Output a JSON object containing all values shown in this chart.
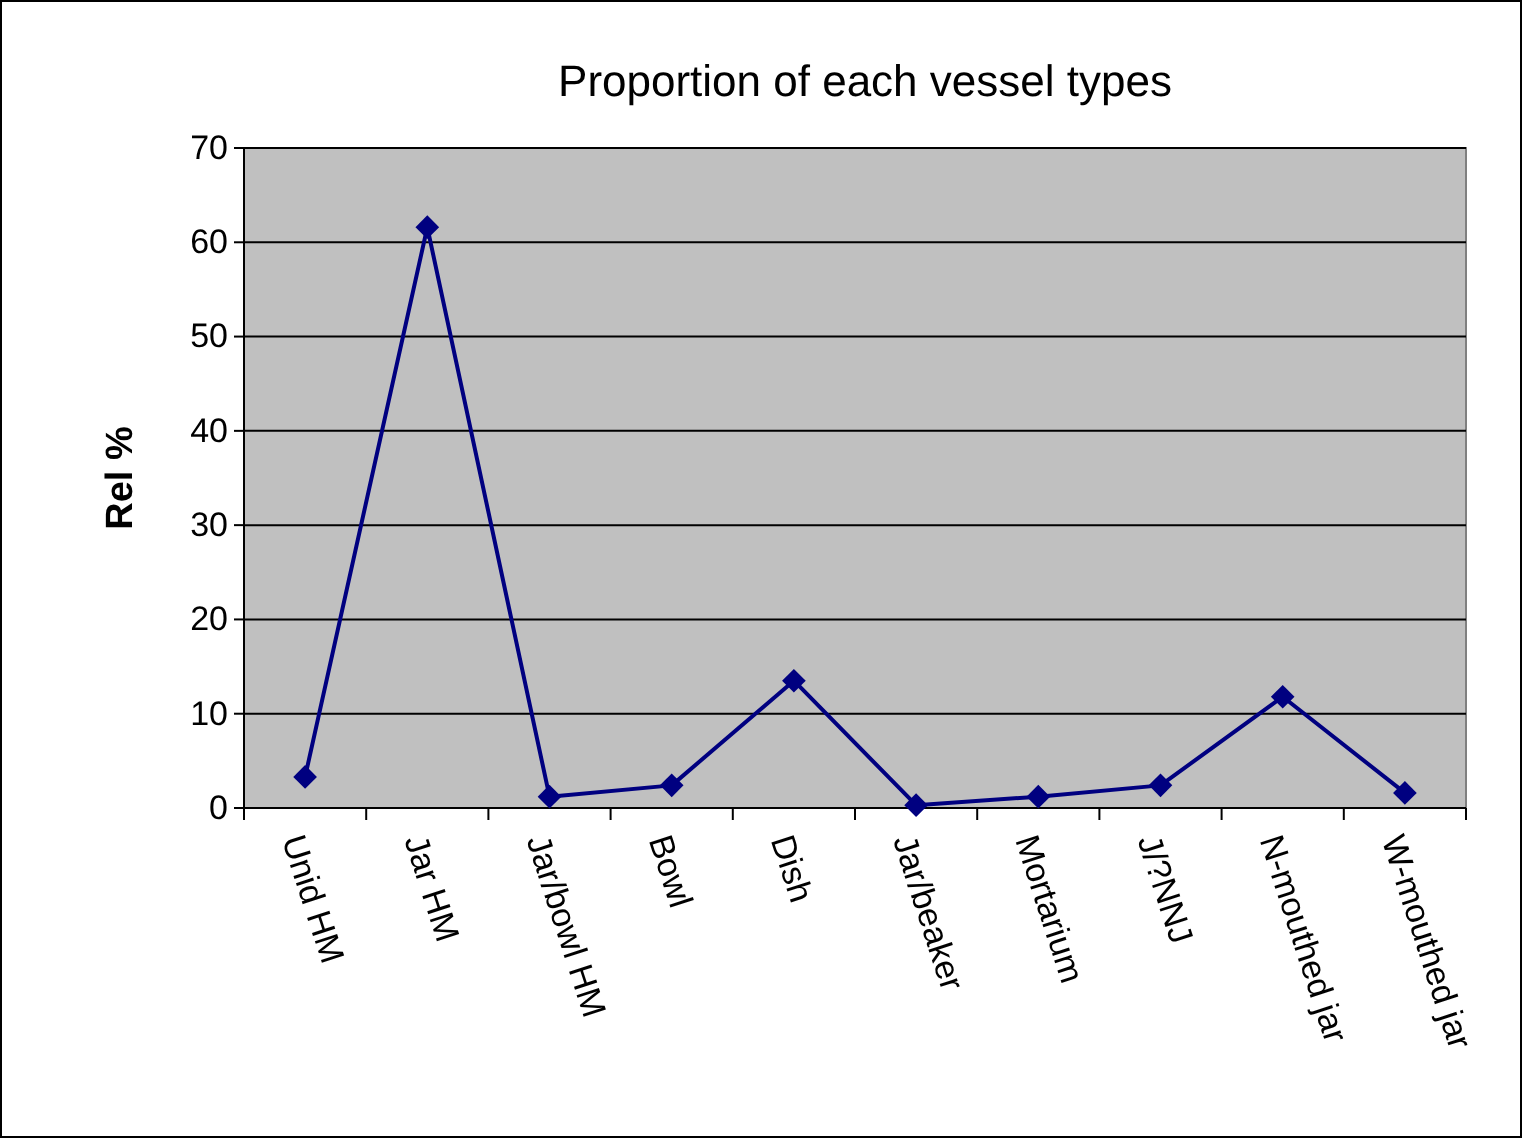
{
  "chart_data": {
    "type": "line",
    "title": "Proportion of each vessel types",
    "ylabel": "Rel %",
    "categories": [
      "Unid HM",
      "Jar HM",
      "Jar/bowl HM",
      "Bowl",
      "Dish",
      "Jar/beaker",
      "Mortarium",
      "J/?NNJ",
      "N-mouthed jar",
      "W-mouthed jar"
    ],
    "series": [
      {
        "color": "#000080",
        "values": [
          3.3,
          61.6,
          1.2,
          2.4,
          13.5,
          0.3,
          1.2,
          2.4,
          11.8,
          1.6
        ]
      }
    ],
    "ylim": [
      0,
      70
    ],
    "yticks": [
      0,
      10,
      20,
      30,
      40,
      50,
      60,
      70
    ],
    "grid": "y",
    "marker": "diamond",
    "line_style": "solid"
  }
}
